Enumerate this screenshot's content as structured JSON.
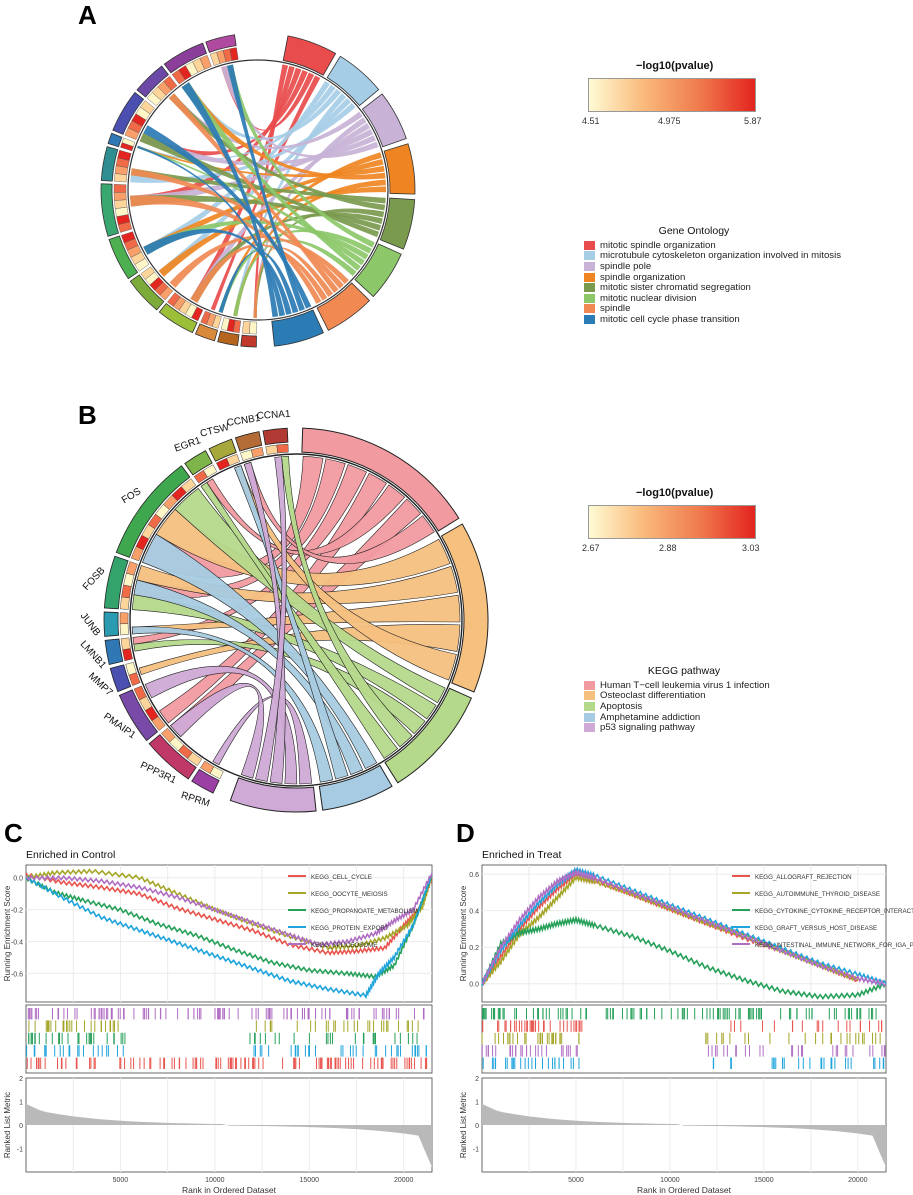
{
  "panels": {
    "a": "A",
    "b": "B",
    "c": "C",
    "d": "D"
  },
  "panel_a": {
    "colorbar": {
      "title": "−log10(pvalue)",
      "ticks": [
        "4.51",
        "4.975",
        "5.87"
      ]
    },
    "legend": {
      "title": "Gene Ontology",
      "items": [
        {
          "label": "mitotic spindle organization",
          "color": "#e84c4c"
        },
        {
          "label": "microtubule cytoskeleton organization involved in mitosis",
          "color": "#a6cde6"
        },
        {
          "label": "spindle pole",
          "color": "#c8b3d6"
        },
        {
          "label": "spindle organization",
          "color": "#ef8522"
        },
        {
          "label": "mitotic sister chromatid segregation",
          "color": "#7a9a4e"
        },
        {
          "label": "mitotic nuclear division",
          "color": "#8cc86a"
        },
        {
          "label": "spindle",
          "color": "#f08a52"
        },
        {
          "label": "mitotic cell cycle phase transition",
          "color": "#2b7bb4"
        }
      ]
    }
  },
  "panel_b": {
    "colorbar": {
      "title": "−log10(pvalue)",
      "ticks": [
        "2.67",
        "2.88",
        "3.03"
      ]
    },
    "legend": {
      "title": "KEGG pathway",
      "items": [
        {
          "label": "Human T−cell leukemia virus 1 infection",
          "color": "#f19aa0"
        },
        {
          "label": "Osteoclast differentiation",
          "color": "#f6c07f"
        },
        {
          "label": "Apoptosis",
          "color": "#b5d98b"
        },
        {
          "label": "Amphetamine addiction",
          "color": "#a7cbe2"
        },
        {
          "label": "p53 signaling pathway",
          "color": "#cfaad6"
        }
      ]
    },
    "genes": [
      "RPRM",
      "PPP3R1",
      "PMAIP1",
      "MMP7",
      "LMNB1",
      "JUNB",
      "FOSB",
      "FOS",
      "EGR1",
      "CTSW",
      "CCNB1",
      "CCNA1"
    ]
  },
  "chart_data": [
    {
      "type": "line",
      "title": "Enriched in Control",
      "xlabel": "Rank in Ordered Dataset",
      "ylabel": "Running Enrichment Score",
      "ylabel2": "Ranked List Metric",
      "xlim": [
        0,
        21500
      ],
      "ylim": [
        -0.78,
        0.08
      ],
      "ylim2": [
        -2,
        2
      ],
      "x_ticks": [
        "5000",
        "10000",
        "15000",
        "20000"
      ],
      "y_ticks": [
        "0.0",
        "-0.2",
        "-0.4",
        "-0.6"
      ],
      "y2_ticks": [
        "2",
        "1",
        "0",
        "-1"
      ],
      "series": [
        {
          "name": "KEGG_CELL_CYCLE",
          "color": "#e8554e",
          "x": [
            0,
            2000,
            4000,
            6000,
            8000,
            10000,
            12000,
            14000,
            16000,
            17500,
            19000,
            20000,
            20800,
            21500
          ],
          "y": [
            0.02,
            -0.03,
            -0.06,
            -0.1,
            -0.19,
            -0.26,
            -0.33,
            -0.42,
            -0.47,
            -0.46,
            -0.44,
            -0.3,
            -0.2,
            0.0
          ]
        },
        {
          "name": "KEGG_OOCYTE_MEIOSIS",
          "color": "#a5a528",
          "x": [
            0,
            1500,
            3500,
            6000,
            8000,
            10000,
            12000,
            14000,
            16000,
            17500,
            19000,
            20200,
            21000,
            21500
          ],
          "y": [
            0.0,
            0.03,
            0.04,
            0.0,
            -0.1,
            -0.2,
            -0.29,
            -0.37,
            -0.44,
            -0.43,
            -0.38,
            -0.3,
            -0.18,
            0.02
          ]
        },
        {
          "name": "KEGG_PROPANOATE_METABOLISM",
          "color": "#27a05a",
          "x": [
            0,
            1500,
            3000,
            5000,
            7000,
            9000,
            11000,
            13000,
            15000,
            17000,
            18500,
            19500,
            20500,
            21500
          ],
          "y": [
            0.0,
            -0.09,
            -0.14,
            -0.2,
            -0.29,
            -0.36,
            -0.45,
            -0.53,
            -0.58,
            -0.6,
            -0.62,
            -0.55,
            -0.3,
            0.02
          ]
        },
        {
          "name": "KEGG_PROTEIN_EXPORT",
          "color": "#1fa4dc",
          "x": [
            0,
            2000,
            4000,
            6000,
            8000,
            10000,
            12000,
            14000,
            16000,
            18000,
            18700,
            19500,
            20500,
            21500
          ],
          "y": [
            0.0,
            -0.13,
            -0.25,
            -0.33,
            -0.41,
            -0.49,
            -0.57,
            -0.65,
            -0.7,
            -0.74,
            -0.6,
            -0.5,
            -0.3,
            0.02
          ]
        },
        {
          "name": "KEGG_SPLICEOSOME",
          "color": "#b06ec3",
          "x": [
            0,
            2000,
            4000,
            6000,
            8000,
            10000,
            12000,
            14000,
            15500,
            17000,
            18500,
            19500,
            20500,
            21500
          ],
          "y": [
            0.0,
            0.0,
            -0.02,
            -0.06,
            -0.12,
            -0.2,
            -0.28,
            -0.36,
            -0.42,
            -0.4,
            -0.35,
            -0.27,
            -0.2,
            0.03
          ]
        }
      ],
      "rug_rows": [
        "#b06ec3",
        "#a5a528",
        "#27a05a",
        "#1fa4dc",
        "#e8554e"
      ]
    },
    {
      "type": "line",
      "title": "Enriched in Treat",
      "xlabel": "Rank in Ordered Dataset",
      "ylabel": "Running Enrichment Score",
      "ylabel2": "Ranked List Metric",
      "xlim": [
        0,
        21500
      ],
      "ylim": [
        -0.1,
        0.65
      ],
      "ylim2": [
        -2,
        2
      ],
      "x_ticks": [
        "5000",
        "10000",
        "15000",
        "20000"
      ],
      "y_ticks": [
        "0.6",
        "0.4",
        "0.2",
        "0.0"
      ],
      "y2_ticks": [
        "2",
        "1",
        "0",
        "-1"
      ],
      "series": [
        {
          "name": "KEGG_ALLOGRAFT_REJECTION",
          "color": "#e8554e",
          "x": [
            0,
            1000,
            2000,
            3000,
            4000,
            5000,
            6000,
            8000,
            10000,
            12000,
            14000,
            16000,
            18000,
            20000
          ],
          "y": [
            0.0,
            0.15,
            0.3,
            0.42,
            0.52,
            0.6,
            0.57,
            0.49,
            0.41,
            0.33,
            0.25,
            0.18,
            0.1,
            0.02
          ]
        },
        {
          "name": "KEGG_AUTOIMMUNE_THYROID_DISEASE",
          "color": "#a5a528",
          "x": [
            0,
            1000,
            2000,
            3000,
            4000,
            5000,
            6000,
            8000,
            10000,
            12000,
            14000,
            16000,
            18000,
            20000
          ],
          "y": [
            0.0,
            0.12,
            0.27,
            0.36,
            0.47,
            0.58,
            0.56,
            0.49,
            0.41,
            0.33,
            0.26,
            0.18,
            0.1,
            0.02
          ]
        },
        {
          "name": "KEGG_CYTOKINE_CYTOKINE_RECEPTOR_INTERACTION",
          "color": "#27a05a",
          "x": [
            0,
            1000,
            2000,
            3000,
            4000,
            5000,
            6000,
            8000,
            10000,
            12000,
            14000,
            16000,
            18000,
            20000,
            21500
          ],
          "y": [
            0.0,
            0.22,
            0.28,
            0.3,
            0.33,
            0.35,
            0.32,
            0.26,
            0.18,
            0.09,
            0.02,
            -0.04,
            -0.07,
            -0.06,
            0.0
          ]
        },
        {
          "name": "KEGG_GRAFT_VERSUS_HOST_DISEASE",
          "color": "#1fa4dc",
          "x": [
            0,
            1000,
            2000,
            3000,
            4000,
            5000,
            6000,
            8000,
            10000,
            12000,
            14000,
            16000,
            18000,
            20000,
            21500
          ],
          "y": [
            0.0,
            0.18,
            0.32,
            0.44,
            0.54,
            0.62,
            0.59,
            0.51,
            0.43,
            0.35,
            0.27,
            0.19,
            0.11,
            0.05,
            0.0
          ]
        },
        {
          "name": "KEGG_INTESTINAL_IMMUNE_NETWORK_FOR_IGA_PRODUCTION",
          "color": "#b06ec3",
          "x": [
            0,
            1000,
            2000,
            3000,
            4000,
            5000,
            6000,
            8000,
            10000,
            12000,
            14000,
            16000,
            18000,
            20000,
            21500
          ],
          "y": [
            0.0,
            0.2,
            0.35,
            0.47,
            0.56,
            0.61,
            0.58,
            0.5,
            0.42,
            0.34,
            0.26,
            0.18,
            0.1,
            0.03,
            0.0
          ]
        }
      ],
      "rug_rows": [
        "#27a05a",
        "#e8554e",
        "#a5a528",
        "#b06ec3",
        "#1fa4dc"
      ]
    }
  ]
}
